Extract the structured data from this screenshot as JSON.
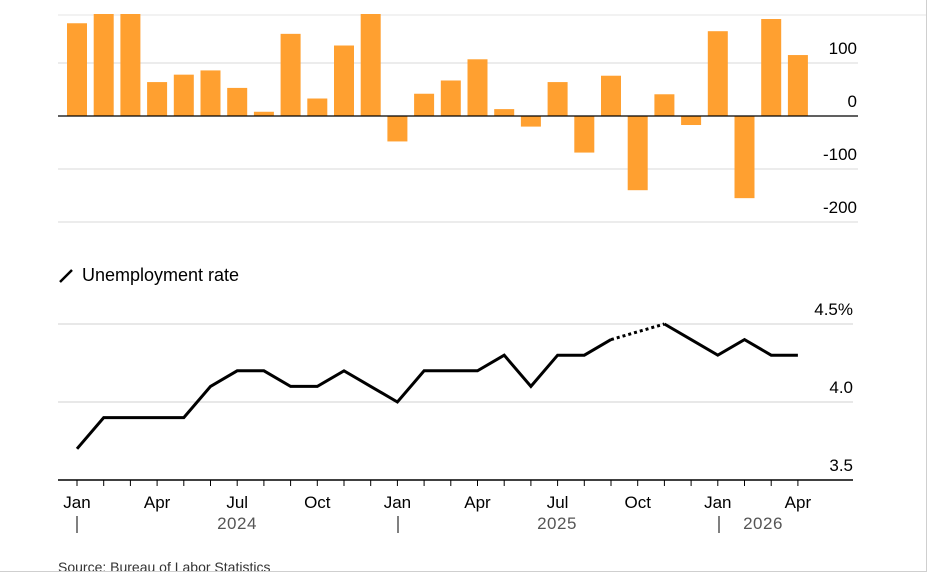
{
  "chart_data": [
    {
      "type": "bar",
      "color": "#ffa030",
      "yticks": [
        "100",
        "0",
        "-100",
        "-200"
      ],
      "ytick_values": [
        100,
        0,
        -100,
        -200
      ],
      "ylim": [
        -205,
        205
      ],
      "values": [
        175,
        200,
        200,
        64,
        78,
        86,
        53,
        8,
        155,
        33,
        133,
        200,
        -48,
        42,
        67,
        107,
        13,
        -20,
        64,
        -69,
        76,
        -140,
        41,
        -17,
        160,
        -155,
        183,
        115
      ]
    },
    {
      "type": "line",
      "legend": "Unemployment rate",
      "yticks": [
        "4.5%",
        "4.0",
        "3.5"
      ],
      "ytick_values": [
        4.5,
        4.0,
        3.5
      ],
      "ylim": [
        3.5,
        4.5
      ],
      "x_month_labels": [
        "Jan",
        "Apr",
        "Jul",
        "Oct",
        "Jan",
        "Apr",
        "Jul",
        "Oct",
        "Jan",
        "Apr"
      ],
      "x_year_labels": [
        "2024",
        "2025",
        "2026"
      ],
      "values": [
        3.7,
        3.9,
        3.9,
        3.9,
        3.9,
        4.1,
        4.2,
        4.2,
        4.1,
        4.1,
        4.2,
        4.1,
        4.0,
        4.2,
        4.2,
        4.2,
        4.3,
        4.1,
        4.3,
        4.3,
        4.4,
        null,
        4.5,
        4.4,
        4.3,
        4.4,
        4.3,
        4.3
      ],
      "dotted_gap": true
    }
  ],
  "source": "Source: Bureau of Labor Statistics"
}
